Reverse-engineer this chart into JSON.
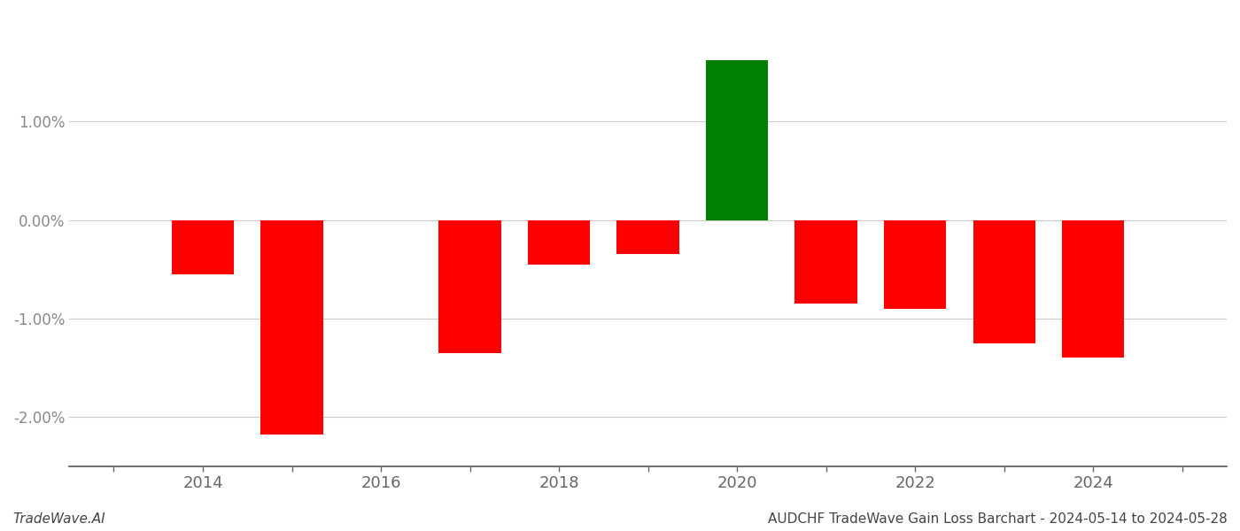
{
  "years": [
    2014,
    2015,
    2017,
    2018,
    2019,
    2020,
    2021,
    2022,
    2023,
    2024
  ],
  "values": [
    -0.55,
    -2.18,
    -1.35,
    -0.45,
    -0.35,
    1.62,
    -0.85,
    -0.9,
    -1.25,
    -1.4
  ],
  "bar_colors": [
    "#ff0000",
    "#ff0000",
    "#ff0000",
    "#ff0000",
    "#ff0000",
    "#008000",
    "#ff0000",
    "#ff0000",
    "#ff0000",
    "#ff0000"
  ],
  "title": "AUDCHF TradeWave Gain Loss Barchart - 2024-05-14 to 2024-05-28",
  "watermark": "TradeWave.AI",
  "xlim": [
    2012.5,
    2025.5
  ],
  "ylim": [
    -2.5,
    2.1
  ],
  "yticks": [
    -2.0,
    -1.0,
    0.0,
    1.0
  ],
  "xtick_labels": [
    2014,
    2016,
    2018,
    2020,
    2022,
    2024
  ],
  "xtick_all": [
    2013,
    2014,
    2015,
    2016,
    2017,
    2018,
    2019,
    2020,
    2021,
    2022,
    2023,
    2024,
    2025
  ],
  "background_color": "#ffffff",
  "grid_color": "#cccccc",
  "bar_width": 0.7
}
